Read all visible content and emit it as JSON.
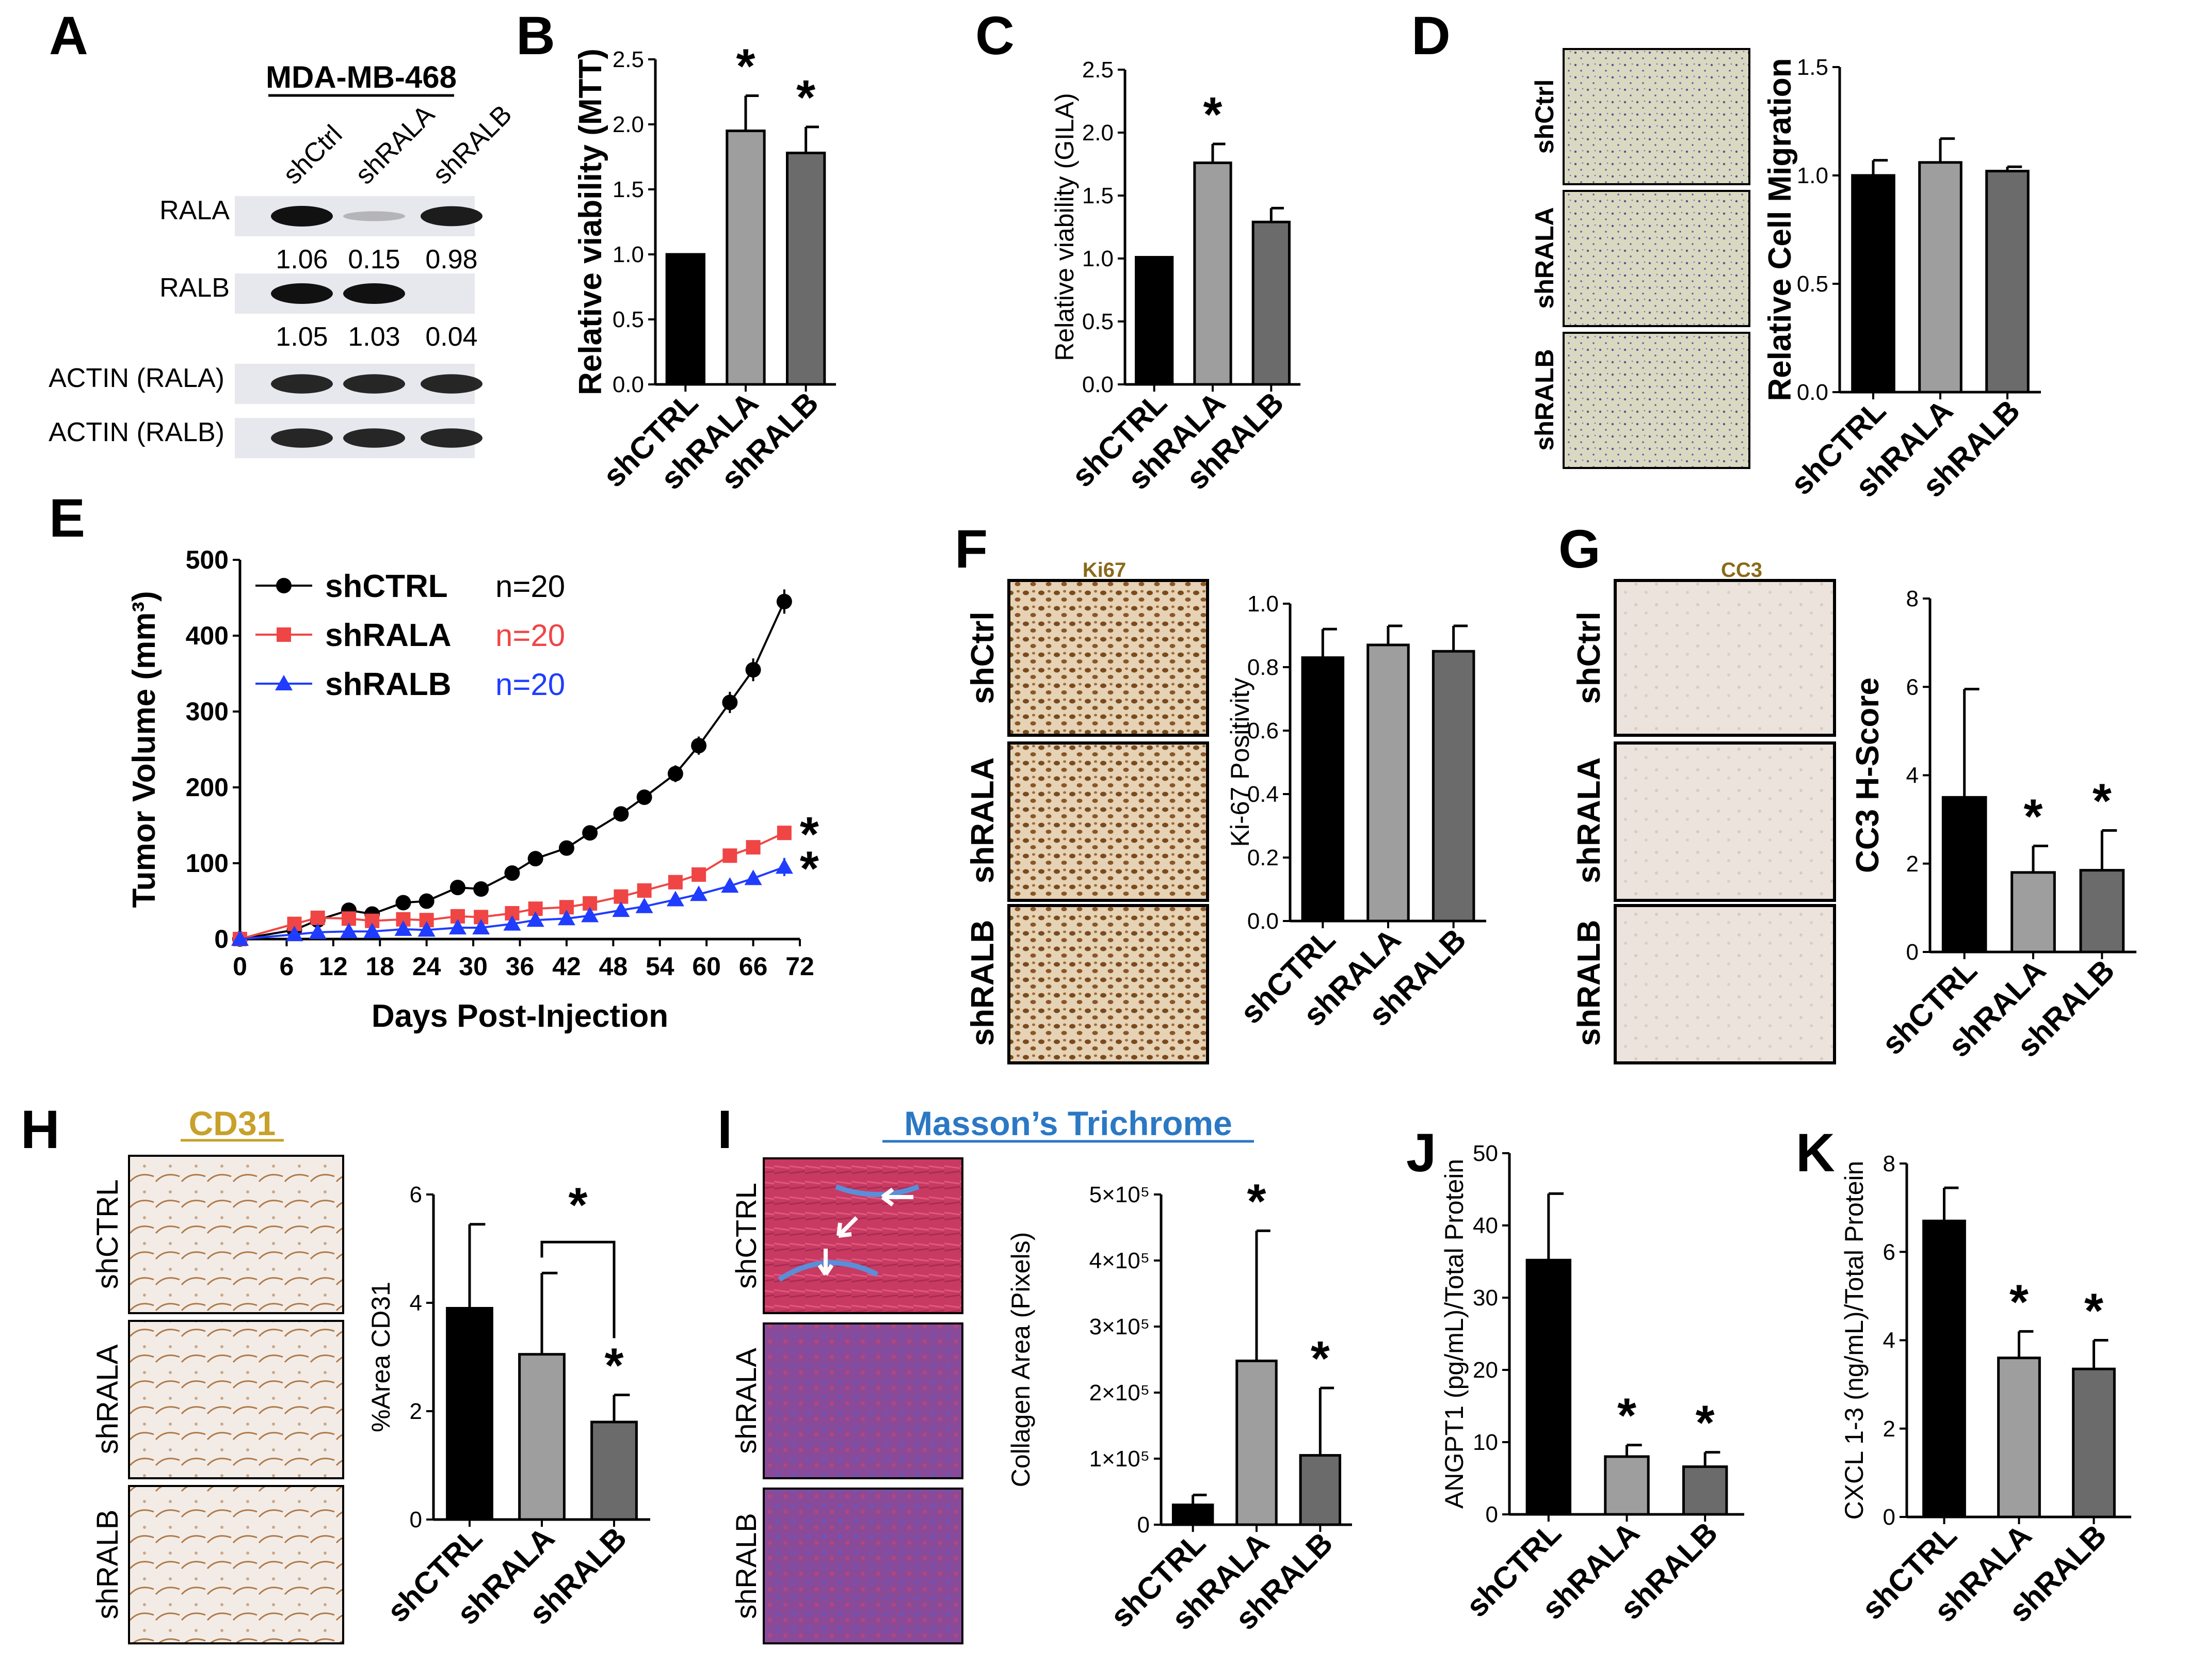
{
  "colors": {
    "shCTRL": "#000000",
    "shRALA": "#9e9e9e",
    "shRALB": "#6b6b6b",
    "lineRALA": "#f04545",
    "lineRALB": "#1f3cff",
    "cd31": "#c8a02a",
    "masson": "#2b78c4",
    "ki67": "#8a6a1a"
  },
  "panels": {
    "A": "A",
    "B": "B",
    "C": "C",
    "D": "D",
    "E": "E",
    "F": "F",
    "G": "G",
    "H": "H",
    "I": "I",
    "J": "J",
    "K": "K"
  },
  "blot": {
    "title": "MDA-MB-468",
    "lanes": [
      "shCtrl",
      "shRALA",
      "shRALB"
    ],
    "rows": [
      {
        "label": "RALA",
        "quant": [
          "1.06",
          "0.15",
          "0.98"
        ],
        "intensity": [
          1.0,
          0.2,
          0.95
        ]
      },
      {
        "label": "RALB",
        "quant": [
          "1.05",
          "1.03",
          "0.04"
        ],
        "intensity": [
          1.0,
          1.0,
          0.0
        ]
      },
      {
        "label": "ACTIN (RALA)",
        "quant": null,
        "intensity": [
          0.9,
          0.9,
          0.9
        ]
      },
      {
        "label": "ACTIN (RALB)",
        "quant": null,
        "intensity": [
          0.9,
          0.9,
          0.9
        ]
      }
    ]
  },
  "rowLabels3": [
    "shCtrl",
    "shRALA",
    "shRALB"
  ],
  "rowLabelsCTRL": [
    "shCTRL",
    "shRALA",
    "shRALB"
  ],
  "stains": {
    "F": "Ki67",
    "G": "CC3",
    "H": "CD31",
    "I": "Masson’s Trichrome"
  },
  "chart_data": [
    {
      "panel": "B",
      "type": "bar",
      "categories": [
        "shCTRL",
        "shRALA",
        "shRALB"
      ],
      "values": [
        1.0,
        1.95,
        1.78
      ],
      "errors": [
        0.0,
        0.27,
        0.2
      ],
      "significance": [
        "",
        "*",
        "*"
      ],
      "ylabel": "Relative viability (MTT)",
      "ylim": [
        0,
        2.5
      ],
      "yticks": [
        "0.0",
        "0.5",
        "1.0",
        "1.5",
        "2.0",
        "2.5"
      ]
    },
    {
      "panel": "C",
      "type": "bar",
      "categories": [
        "shCTRL",
        "shRALA",
        "shRALB"
      ],
      "values": [
        1.01,
        1.76,
        1.29
      ],
      "errors": [
        0.0,
        0.15,
        0.11
      ],
      "significance": [
        "",
        "*",
        ""
      ],
      "ylabel": "Relative viability (GILA)",
      "ylim": [
        0,
        2.5
      ],
      "yticks": [
        "0.0",
        "0.5",
        "1.0",
        "1.5",
        "2.0",
        "2.5"
      ]
    },
    {
      "panel": "D",
      "type": "bar",
      "categories": [
        "shCTRL",
        "shRALA",
        "shRALB"
      ],
      "values": [
        1.0,
        1.06,
        1.02
      ],
      "errors": [
        0.07,
        0.11,
        0.02
      ],
      "significance": [
        "",
        "",
        ""
      ],
      "ylabel": "Relative Cell Migration",
      "ylim": [
        0,
        1.5
      ],
      "yticks": [
        "0.0",
        "0.5",
        "1.0",
        "1.5"
      ]
    },
    {
      "panel": "E",
      "type": "line",
      "title": "",
      "xlabel": "Days Post-Injection",
      "ylabel": "Tumor Volume (mm³)",
      "xlim": [
        0,
        72
      ],
      "ylim": [
        0,
        500
      ],
      "xticks": [
        "0",
        "6",
        "12",
        "18",
        "24",
        "30",
        "36",
        "42",
        "48",
        "54",
        "60",
        "66",
        "72"
      ],
      "yticks": [
        "0",
        "100",
        "200",
        "300",
        "400",
        "500"
      ],
      "series": [
        {
          "name": "shCTRL",
          "n": "n=20",
          "x": [
            0,
            7,
            10,
            14,
            17,
            21,
            24,
            28,
            31,
            35,
            38,
            42,
            45,
            49,
            52,
            56,
            59,
            63,
            66,
            70
          ],
          "values": [
            0,
            12,
            25,
            38,
            33,
            48,
            50,
            68,
            66,
            87,
            106,
            120,
            140,
            165,
            187,
            218,
            255,
            312,
            355,
            445
          ],
          "errors": [
            0,
            3,
            4,
            5,
            5,
            5,
            6,
            6,
            6,
            7,
            8,
            8,
            9,
            10,
            10,
            11,
            12,
            14,
            15,
            16
          ],
          "marker": "circle"
        },
        {
          "name": "shRALA",
          "n": "n=20",
          "x": [
            0,
            7,
            10,
            14,
            17,
            21,
            24,
            28,
            31,
            35,
            38,
            42,
            45,
            49,
            52,
            56,
            59,
            63,
            66,
            70
          ],
          "values": [
            0,
            20,
            28,
            27,
            24,
            26,
            25,
            30,
            29,
            34,
            40,
            42,
            47,
            56,
            64,
            75,
            85,
            110,
            121,
            140
          ],
          "errors": [
            0,
            3,
            3,
            3,
            3,
            3,
            3,
            3,
            3,
            4,
            4,
            4,
            4,
            5,
            5,
            6,
            6,
            7,
            8,
            9
          ],
          "marker": "square",
          "significance": "*"
        },
        {
          "name": "shRALB",
          "n": "n=20",
          "x": [
            0,
            7,
            10,
            14,
            17,
            21,
            24,
            28,
            31,
            35,
            38,
            42,
            45,
            49,
            52,
            56,
            59,
            63,
            66,
            70
          ],
          "values": [
            0,
            6,
            9,
            10,
            10,
            13,
            12,
            15,
            15,
            20,
            25,
            27,
            31,
            38,
            43,
            52,
            59,
            70,
            80,
            95
          ],
          "errors": [
            0,
            2,
            2,
            2,
            2,
            2,
            2,
            3,
            3,
            3,
            3,
            3,
            4,
            4,
            4,
            5,
            5,
            6,
            7,
            12
          ],
          "marker": "triangle",
          "significance": "*"
        }
      ]
    },
    {
      "panel": "F",
      "type": "bar",
      "categories": [
        "shCTRL",
        "shRALA",
        "shRALB"
      ],
      "values": [
        0.83,
        0.87,
        0.85
      ],
      "errors": [
        0.09,
        0.06,
        0.08
      ],
      "significance": [
        "",
        "",
        ""
      ],
      "ylabel": "Ki-67 Positivity",
      "ylim": [
        0,
        1.0
      ],
      "yticks": [
        "0.0",
        "0.2",
        "0.4",
        "0.6",
        "0.8",
        "1.0"
      ]
    },
    {
      "panel": "G",
      "type": "bar",
      "categories": [
        "shCTRL",
        "shRALA",
        "shRALB"
      ],
      "values": [
        3.5,
        1.8,
        1.85
      ],
      "errors": [
        2.45,
        0.6,
        0.9
      ],
      "significance": [
        "",
        "*",
        "*"
      ],
      "ylabel": "CC3 H-Score",
      "ylim": [
        0,
        8
      ],
      "yticks": [
        "0",
        "2",
        "4",
        "6",
        "8"
      ]
    },
    {
      "panel": "H",
      "type": "bar",
      "categories": [
        "shCTRL",
        "shRALA",
        "shRALB"
      ],
      "values": [
        3.9,
        3.05,
        1.8
      ],
      "errors": [
        1.55,
        1.5,
        0.5
      ],
      "significance": [
        "",
        "",
        "*"
      ],
      "bracket": {
        "from": "shRALA",
        "to": "shRALB",
        "label": "*"
      },
      "ylabel": "%Area CD31",
      "ylim": [
        0,
        6
      ],
      "yticks": [
        "0",
        "2",
        "4",
        "6"
      ]
    },
    {
      "panel": "I",
      "type": "bar",
      "categories": [
        "shCTRL",
        "shRALA",
        "shRALB"
      ],
      "values": [
        30000,
        248000,
        105000
      ],
      "errors": [
        15000,
        197000,
        102000
      ],
      "significance": [
        "",
        "*",
        "*"
      ],
      "ylabel": "Collagen Area (Pixels)",
      "ylim": [
        0,
        500000
      ],
      "yticks": [
        "0",
        "1×10⁵",
        "2×10⁵",
        "3×10⁵",
        "4×10⁵",
        "5×10⁵"
      ]
    },
    {
      "panel": "J",
      "type": "bar",
      "categories": [
        "shCTRL",
        "shRALA",
        "shRALB"
      ],
      "values": [
        35.2,
        8.0,
        6.6
      ],
      "errors": [
        9.2,
        1.6,
        2.0
      ],
      "significance": [
        "",
        "*",
        "*"
      ],
      "ylabel": "ANGPT1 (pg/mL)/Total Protein",
      "ylim": [
        0,
        50
      ],
      "yticks": [
        "0",
        "10",
        "20",
        "30",
        "40",
        "50"
      ]
    },
    {
      "panel": "K",
      "type": "bar",
      "categories": [
        "shCTRL",
        "shRALA",
        "shRALB"
      ],
      "values": [
        6.7,
        3.6,
        3.35
      ],
      "errors": [
        0.75,
        0.6,
        0.65
      ],
      "significance": [
        "",
        "*",
        "*"
      ],
      "ylabel": "CXCL 1-3 (ng/mL)/Total Protein",
      "ylim": [
        0,
        8
      ],
      "yticks": [
        "0",
        "2",
        "4",
        "6",
        "8"
      ]
    }
  ]
}
